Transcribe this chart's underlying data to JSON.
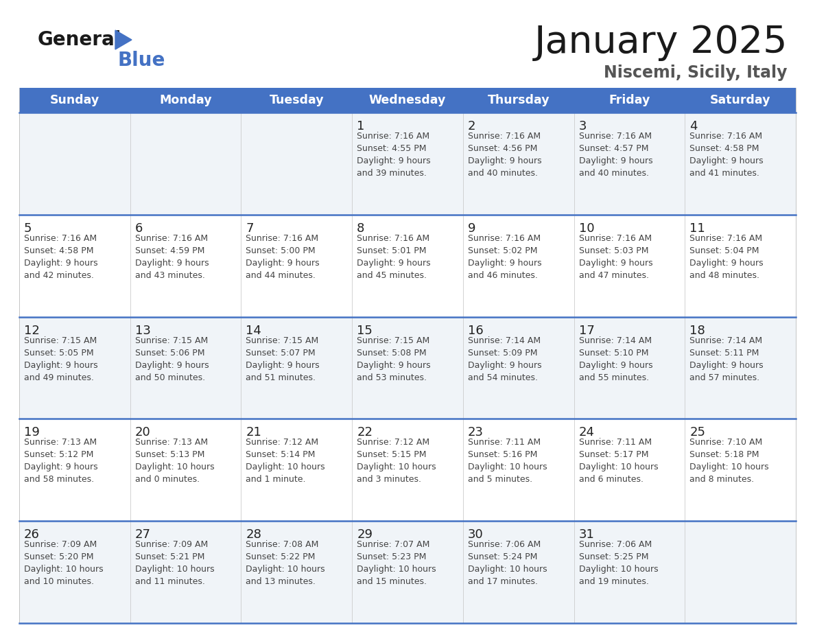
{
  "title": "January 2025",
  "subtitle": "Niscemi, Sicily, Italy",
  "header_bg": "#4472C4",
  "header_text_color": "#FFFFFF",
  "days_of_week": [
    "Sunday",
    "Monday",
    "Tuesday",
    "Wednesday",
    "Thursday",
    "Friday",
    "Saturday"
  ],
  "row_bg_even": "#F0F4F8",
  "row_bg_odd": "#FFFFFF",
  "divider_color": "#4472C4",
  "text_color": "#444444",
  "day_num_color": "#222222",
  "logo_general_color": "#1a1a1a",
  "logo_blue_color": "#4472C4",
  "logo_triangle_color": "#4472C4",
  "title_color": "#1a1a1a",
  "subtitle_color": "#555555",
  "calendar": [
    [
      {
        "day": "",
        "info": ""
      },
      {
        "day": "",
        "info": ""
      },
      {
        "day": "",
        "info": ""
      },
      {
        "day": "1",
        "info": "Sunrise: 7:16 AM\nSunset: 4:55 PM\nDaylight: 9 hours\nand 39 minutes."
      },
      {
        "day": "2",
        "info": "Sunrise: 7:16 AM\nSunset: 4:56 PM\nDaylight: 9 hours\nand 40 minutes."
      },
      {
        "day": "3",
        "info": "Sunrise: 7:16 AM\nSunset: 4:57 PM\nDaylight: 9 hours\nand 40 minutes."
      },
      {
        "day": "4",
        "info": "Sunrise: 7:16 AM\nSunset: 4:58 PM\nDaylight: 9 hours\nand 41 minutes."
      }
    ],
    [
      {
        "day": "5",
        "info": "Sunrise: 7:16 AM\nSunset: 4:58 PM\nDaylight: 9 hours\nand 42 minutes."
      },
      {
        "day": "6",
        "info": "Sunrise: 7:16 AM\nSunset: 4:59 PM\nDaylight: 9 hours\nand 43 minutes."
      },
      {
        "day": "7",
        "info": "Sunrise: 7:16 AM\nSunset: 5:00 PM\nDaylight: 9 hours\nand 44 minutes."
      },
      {
        "day": "8",
        "info": "Sunrise: 7:16 AM\nSunset: 5:01 PM\nDaylight: 9 hours\nand 45 minutes."
      },
      {
        "day": "9",
        "info": "Sunrise: 7:16 AM\nSunset: 5:02 PM\nDaylight: 9 hours\nand 46 minutes."
      },
      {
        "day": "10",
        "info": "Sunrise: 7:16 AM\nSunset: 5:03 PM\nDaylight: 9 hours\nand 47 minutes."
      },
      {
        "day": "11",
        "info": "Sunrise: 7:16 AM\nSunset: 5:04 PM\nDaylight: 9 hours\nand 48 minutes."
      }
    ],
    [
      {
        "day": "12",
        "info": "Sunrise: 7:15 AM\nSunset: 5:05 PM\nDaylight: 9 hours\nand 49 minutes."
      },
      {
        "day": "13",
        "info": "Sunrise: 7:15 AM\nSunset: 5:06 PM\nDaylight: 9 hours\nand 50 minutes."
      },
      {
        "day": "14",
        "info": "Sunrise: 7:15 AM\nSunset: 5:07 PM\nDaylight: 9 hours\nand 51 minutes."
      },
      {
        "day": "15",
        "info": "Sunrise: 7:15 AM\nSunset: 5:08 PM\nDaylight: 9 hours\nand 53 minutes."
      },
      {
        "day": "16",
        "info": "Sunrise: 7:14 AM\nSunset: 5:09 PM\nDaylight: 9 hours\nand 54 minutes."
      },
      {
        "day": "17",
        "info": "Sunrise: 7:14 AM\nSunset: 5:10 PM\nDaylight: 9 hours\nand 55 minutes."
      },
      {
        "day": "18",
        "info": "Sunrise: 7:14 AM\nSunset: 5:11 PM\nDaylight: 9 hours\nand 57 minutes."
      }
    ],
    [
      {
        "day": "19",
        "info": "Sunrise: 7:13 AM\nSunset: 5:12 PM\nDaylight: 9 hours\nand 58 minutes."
      },
      {
        "day": "20",
        "info": "Sunrise: 7:13 AM\nSunset: 5:13 PM\nDaylight: 10 hours\nand 0 minutes."
      },
      {
        "day": "21",
        "info": "Sunrise: 7:12 AM\nSunset: 5:14 PM\nDaylight: 10 hours\nand 1 minute."
      },
      {
        "day": "22",
        "info": "Sunrise: 7:12 AM\nSunset: 5:15 PM\nDaylight: 10 hours\nand 3 minutes."
      },
      {
        "day": "23",
        "info": "Sunrise: 7:11 AM\nSunset: 5:16 PM\nDaylight: 10 hours\nand 5 minutes."
      },
      {
        "day": "24",
        "info": "Sunrise: 7:11 AM\nSunset: 5:17 PM\nDaylight: 10 hours\nand 6 minutes."
      },
      {
        "day": "25",
        "info": "Sunrise: 7:10 AM\nSunset: 5:18 PM\nDaylight: 10 hours\nand 8 minutes."
      }
    ],
    [
      {
        "day": "26",
        "info": "Sunrise: 7:09 AM\nSunset: 5:20 PM\nDaylight: 10 hours\nand 10 minutes."
      },
      {
        "day": "27",
        "info": "Sunrise: 7:09 AM\nSunset: 5:21 PM\nDaylight: 10 hours\nand 11 minutes."
      },
      {
        "day": "28",
        "info": "Sunrise: 7:08 AM\nSunset: 5:22 PM\nDaylight: 10 hours\nand 13 minutes."
      },
      {
        "day": "29",
        "info": "Sunrise: 7:07 AM\nSunset: 5:23 PM\nDaylight: 10 hours\nand 15 minutes."
      },
      {
        "day": "30",
        "info": "Sunrise: 7:06 AM\nSunset: 5:24 PM\nDaylight: 10 hours\nand 17 minutes."
      },
      {
        "day": "31",
        "info": "Sunrise: 7:06 AM\nSunset: 5:25 PM\nDaylight: 10 hours\nand 19 minutes."
      },
      {
        "day": "",
        "info": ""
      }
    ]
  ]
}
